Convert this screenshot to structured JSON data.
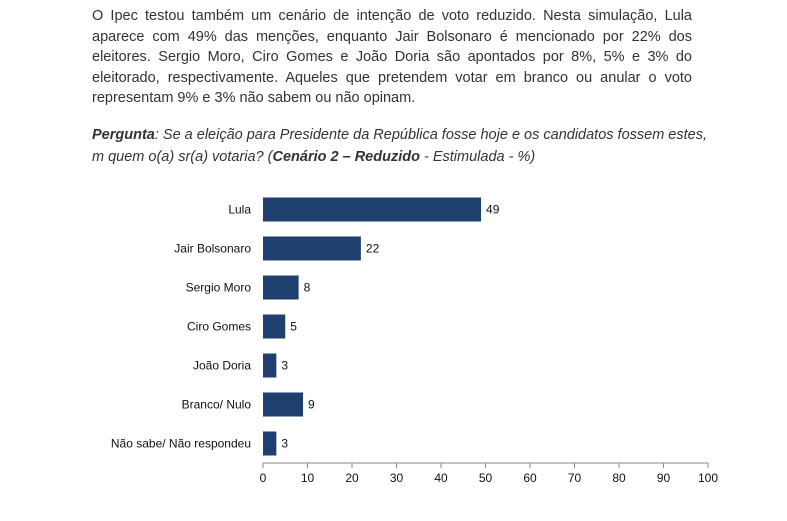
{
  "document": {
    "paragraph": "O Ipec testou também um cenário de intenção de voto reduzido. Nesta simulação, Lula aparece com 49% das menções, enquanto Jair Bolsonaro é mencionado por 22% dos eleitores. Sergio Moro, Ciro Gomes e João Doria são apontados por 8%, 5% e 3% do eleitorado, respectivamente. Aqueles que pretendem votar em branco ou anular o voto representam 9% e 3% não sabem ou não opinam.",
    "question": {
      "label": "Pergunta",
      "sep": ": ",
      "text_part1": "Se a eleição para Presidente da República fosse hoje e os candidatos fossem estes, m quem o(a) sr(a) votaria? (",
      "scenario": "Cenário 2 – Reduzido",
      "text_part2": " - Estimulada - %)"
    }
  },
  "chart_data": {
    "type": "bar",
    "orientation": "horizontal",
    "categories": [
      "Lula",
      "Jair Bolsonaro",
      "Sergio Moro",
      "Ciro Gomes",
      "João Doria",
      "Branco/ Nulo",
      "Não sabe/ Não respondeu"
    ],
    "values": [
      49,
      22,
      8,
      5,
      3,
      9,
      3
    ],
    "xlim": [
      0,
      100
    ],
    "xticks": [
      0,
      10,
      20,
      30,
      40,
      50,
      60,
      70,
      80,
      90,
      100
    ],
    "bar_color": "#1f3f6e",
    "grid": false,
    "data_labels": true
  }
}
